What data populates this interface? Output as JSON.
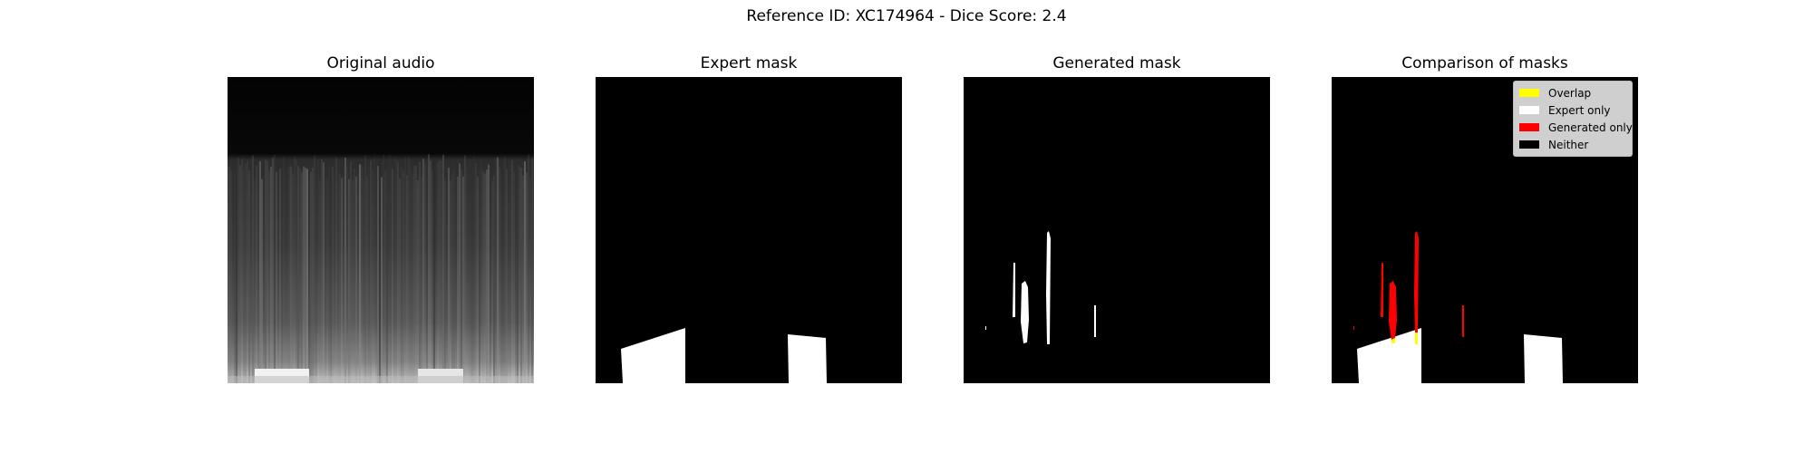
{
  "figure": {
    "suptitle": "Reference ID: XC174964 - Dice Score: 2.4"
  },
  "panels": [
    {
      "title": "Original audio"
    },
    {
      "title": "Expert mask"
    },
    {
      "title": "Generated mask"
    },
    {
      "title": "Comparison of masks"
    }
  ],
  "legend": {
    "items": [
      {
        "label": "Overlap",
        "color": "#ffff00"
      },
      {
        "label": "Expert only",
        "color": "#ffffff"
      },
      {
        "label": "Generated only",
        "color": "#ff0000"
      },
      {
        "label": "Neither",
        "color": "#000000"
      }
    ]
  }
}
